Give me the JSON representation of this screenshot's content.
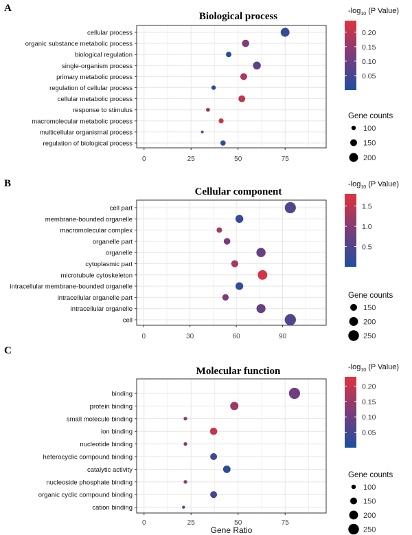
{
  "colors": {
    "low": "#1f4fa0",
    "high": "#e0333f",
    "grid": "#e6e6e6",
    "frame": "#333333"
  },
  "panels": [
    {
      "letter": "A",
      "title": "Biological process",
      "legend_color_title": "-log",
      "legend_color_sub": "10",
      "legend_color_tail": " (P Value)",
      "legend_size_title": "Gene counts",
      "color_ticks": [
        "0.20",
        "0.15",
        "0.10",
        "0.05"
      ],
      "color_tick_values": [
        0.2,
        0.15,
        0.1,
        0.05
      ],
      "color_range": [
        0.0,
        0.24
      ],
      "size_ticks": [
        "100",
        "150",
        "200"
      ],
      "size_tick_values": [
        100,
        150,
        200
      ],
      "x_ticks": [
        "0",
        "25",
        "50",
        "75"
      ],
      "x_tick_values": [
        0,
        25,
        50,
        75
      ],
      "xlim": [
        -1,
        95
      ]
    },
    {
      "letter": "B",
      "title": "Cellular component",
      "legend_color_title": "-log",
      "legend_color_sub": "10",
      "legend_color_tail": " (P Value)",
      "legend_size_title": "Gene counts",
      "color_ticks": [
        "1.5",
        "1.0",
        "0.5"
      ],
      "color_tick_values": [
        1.5,
        1.0,
        0.5
      ],
      "color_range": [
        0.0,
        1.8
      ],
      "size_ticks": [
        "150",
        "200",
        "250"
      ],
      "size_tick_values": [
        150,
        200,
        250
      ],
      "x_ticks": [
        "0",
        "30",
        "60",
        "90"
      ],
      "x_tick_values": [
        0,
        30,
        60,
        90
      ],
      "xlim": [
        -1,
        116
      ]
    },
    {
      "letter": "C",
      "title": "Molecular function",
      "legend_color_title": "-log",
      "legend_color_sub": "10",
      "legend_color_tail": " (P Value)",
      "legend_size_title": "Gene counts",
      "color_ticks": [
        "0.20",
        "0.15",
        "0.10",
        "0.05"
      ],
      "color_tick_values": [
        0.2,
        0.15,
        0.1,
        0.05
      ],
      "color_range": [
        0.0,
        0.23
      ],
      "size_ticks": [
        "100",
        "150",
        "200",
        "250"
      ],
      "size_tick_values": [
        100,
        150,
        200,
        250
      ],
      "x_ticks": [
        "0",
        "25",
        "50",
        "75"
      ],
      "x_tick_values": [
        0,
        25,
        50,
        75
      ],
      "xlim": [
        -1,
        95
      ],
      "xlabel": "Gene Ratio"
    }
  ],
  "chart_data": [
    {
      "type": "scatter",
      "title": "Biological process",
      "categories": [
        "cellular process",
        "organic substance metabolic process",
        "biological regulation",
        "single-organism process",
        "primary metabolic process",
        "regulation of cellular process",
        "cellular metabolic process",
        "response to stimulus",
        "macromolecular metabolic process",
        "multicellular organismal process",
        "regulation of biological process"
      ],
      "x": [
        75,
        54,
        45,
        60,
        53,
        37,
        52,
        34,
        41,
        31,
        42
      ],
      "color_value": [
        0.03,
        0.13,
        0.01,
        0.08,
        0.18,
        0.02,
        0.2,
        0.14,
        0.21,
        0.06,
        0.02
      ],
      "gene_counts": [
        200,
        160,
        120,
        175,
        150,
        100,
        150,
        90,
        110,
        70,
        115
      ]
    },
    {
      "type": "scatter",
      "title": "Cellular component",
      "categories": [
        "cell part",
        "membrane-bounded organelle",
        "macromolecular complex",
        "organelle part",
        "organelle",
        "cytoplasmic part",
        "microtubule cytoskeleton",
        "intracellular membrane-bounded organelle",
        "intracellular organelle part",
        "intracellular organelle",
        "cell"
      ],
      "x": [
        95,
        62,
        49,
        54,
        76,
        59,
        77,
        62,
        53,
        76,
        95
      ],
      "color_value": [
        0.5,
        0.2,
        1.3,
        0.9,
        0.7,
        1.3,
        1.7,
        0.2,
        0.9,
        0.7,
        0.5
      ],
      "gene_counts": [
        265,
        175,
        120,
        145,
        210,
        155,
        220,
        170,
        140,
        205,
        270
      ]
    },
    {
      "type": "scatter",
      "title": "Molecular function",
      "xlabel": "Gene Ratio",
      "categories": [
        "binding",
        "protein binding",
        "small molecule binding",
        "ion binding",
        "nucleotide binding",
        "heterocyclic compound binding",
        "catalytic activity",
        "nucleoside phosphate binding",
        "organic cyclic compound binding",
        "cation binding"
      ],
      "x": [
        80,
        48,
        22,
        37,
        22,
        37,
        44,
        22,
        37,
        21
      ],
      "color_value": [
        0.1,
        0.15,
        0.13,
        0.2,
        0.12,
        0.04,
        0.02,
        0.13,
        0.05,
        0.1
      ],
      "gene_counts": [
        265,
        185,
        85,
        160,
        85,
        150,
        165,
        85,
        150,
        75
      ]
    }
  ]
}
